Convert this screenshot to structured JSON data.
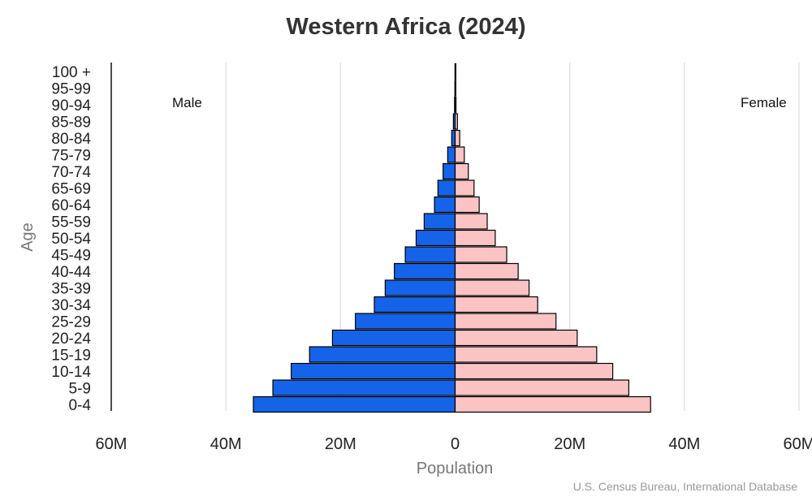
{
  "chart_data": {
    "type": "bar",
    "orientation": "horizontal-pyramid",
    "title": "Western Africa (2024)",
    "xlabel": "Population",
    "ylabel": "Age",
    "source": "U.S. Census Bureau, International Database",
    "xlim": [
      -60,
      60
    ],
    "x_unit": "M",
    "x_ticks": [
      {
        "value": -60,
        "label": "60M"
      },
      {
        "value": -40,
        "label": "40M"
      },
      {
        "value": -20,
        "label": "20M"
      },
      {
        "value": 0,
        "label": "0"
      },
      {
        "value": 20,
        "label": "20M"
      },
      {
        "value": 40,
        "label": "40M"
      },
      {
        "value": 60,
        "label": "60M"
      }
    ],
    "grid": true,
    "legend_placement": "top-left and top-right",
    "categories": [
      "100 +",
      "95-99",
      "90-94",
      "85-89",
      "80-84",
      "75-79",
      "70-74",
      "65-69",
      "60-64",
      "55-59",
      "50-54",
      "45-49",
      "40-44",
      "35-39",
      "30-34",
      "25-29",
      "20-24",
      "15-19",
      "10-14",
      "5-9",
      "0-4"
    ],
    "series": [
      {
        "name": "Male",
        "color": "#1563e8",
        "values": [
          0.01,
          0.04,
          0.1,
          0.3,
          0.6,
          1.3,
          2.1,
          3.0,
          3.6,
          5.4,
          6.8,
          8.7,
          10.6,
          12.2,
          14.1,
          17.4,
          21.4,
          25.4,
          28.6,
          31.8,
          35.2
        ]
      },
      {
        "name": "Female",
        "color": "#fbc3c3",
        "values": [
          0.02,
          0.07,
          0.15,
          0.4,
          0.8,
          1.6,
          2.3,
          3.3,
          4.2,
          5.6,
          7.0,
          9.0,
          11.0,
          12.9,
          14.4,
          17.6,
          21.3,
          24.7,
          27.5,
          30.3,
          34.1
        ]
      }
    ]
  }
}
